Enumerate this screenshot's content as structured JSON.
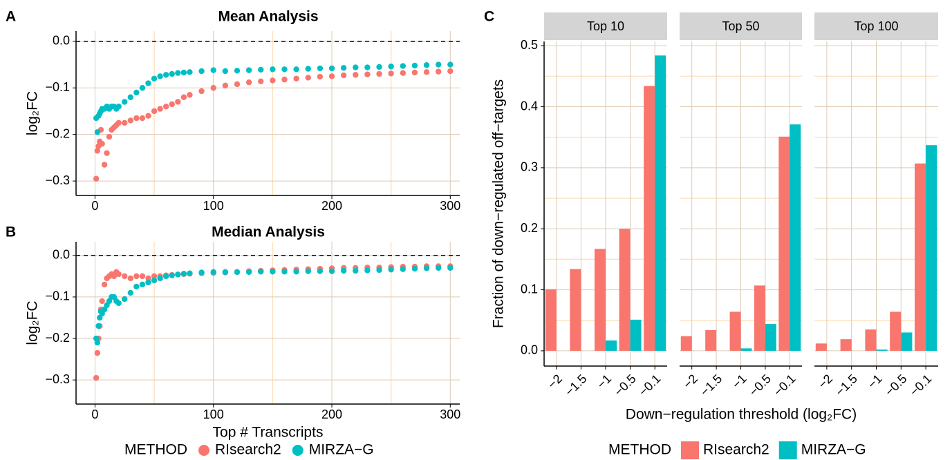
{
  "chart_data": [
    {
      "type": "scatter",
      "label": "A",
      "title": "Mean Analysis",
      "ylabel": "log₂FC",
      "xlim": [
        -16,
        308
      ],
      "xticks": [
        0,
        100,
        200,
        300
      ],
      "minor_xticks": [
        50,
        150,
        250
      ],
      "ylim": [
        -0.331,
        0.022
      ],
      "yticks": [
        {
          "value": 0,
          "label": "0.0"
        },
        {
          "value": -0.1,
          "label": "−0.1"
        },
        {
          "value": -0.2,
          "label": "−0.2"
        },
        {
          "value": -0.3,
          "label": "−0.3"
        }
      ],
      "hline": 0,
      "grid": true,
      "x": [
        1,
        2,
        3,
        4,
        5,
        6,
        8,
        10,
        12,
        14,
        16,
        18,
        20,
        25,
        30,
        35,
        40,
        45,
        50,
        55,
        60,
        65,
        70,
        75,
        80,
        90,
        100,
        110,
        120,
        130,
        140,
        150,
        160,
        170,
        180,
        190,
        200,
        210,
        220,
        230,
        240,
        250,
        260,
        270,
        280,
        290,
        300
      ],
      "series": [
        {
          "color": "#F8766D",
          "values": [
            -0.295,
            -0.235,
            -0.225,
            -0.215,
            -0.19,
            -0.22,
            -0.265,
            -0.24,
            -0.205,
            -0.19,
            -0.185,
            -0.18,
            -0.175,
            -0.175,
            -0.17,
            -0.165,
            -0.165,
            -0.16,
            -0.15,
            -0.145,
            -0.14,
            -0.135,
            -0.13,
            -0.12,
            -0.115,
            -0.107,
            -0.1,
            -0.095,
            -0.092,
            -0.088,
            -0.086,
            -0.084,
            -0.082,
            -0.08,
            -0.078,
            -0.076,
            -0.075,
            -0.073,
            -0.072,
            -0.071,
            -0.07,
            -0.069,
            -0.068,
            -0.067,
            -0.066,
            -0.065,
            -0.064
          ]
        },
        {
          "color": "#00BFC4",
          "values": [
            -0.165,
            -0.195,
            -0.16,
            -0.155,
            -0.15,
            -0.145,
            -0.145,
            -0.14,
            -0.145,
            -0.14,
            -0.14,
            -0.145,
            -0.14,
            -0.13,
            -0.12,
            -0.11,
            -0.1,
            -0.09,
            -0.08,
            -0.075,
            -0.072,
            -0.07,
            -0.068,
            -0.067,
            -0.066,
            -0.064,
            -0.062,
            -0.064,
            -0.063,
            -0.062,
            -0.061,
            -0.06,
            -0.06,
            -0.06,
            -0.059,
            -0.058,
            -0.058,
            -0.057,
            -0.056,
            -0.056,
            -0.055,
            -0.054,
            -0.053,
            -0.052,
            -0.051,
            -0.05,
            -0.05
          ]
        }
      ]
    },
    {
      "type": "scatter",
      "label": "B",
      "title": "Median Analysis",
      "ylabel": "log₂FC",
      "xlabel": "Top # Transcripts",
      "xlim": [
        -16,
        308
      ],
      "xticks": [
        0,
        100,
        200,
        300
      ],
      "minor_xticks": [
        50,
        150,
        250
      ],
      "ylim": [
        -0.358,
        0.033
      ],
      "yticks": [
        {
          "value": 0,
          "label": "0.0"
        },
        {
          "value": -0.1,
          "label": "−0.1"
        },
        {
          "value": -0.2,
          "label": "−0.2"
        },
        {
          "value": -0.3,
          "label": "−0.3"
        }
      ],
      "hline": 0,
      "grid": true,
      "legend_title": "METHOD",
      "x": [
        1,
        2,
        3,
        4,
        5,
        6,
        8,
        10,
        12,
        14,
        16,
        18,
        20,
        25,
        30,
        35,
        40,
        45,
        50,
        55,
        60,
        65,
        70,
        75,
        80,
        90,
        100,
        110,
        120,
        130,
        140,
        150,
        160,
        170,
        180,
        190,
        200,
        210,
        220,
        230,
        240,
        250,
        260,
        270,
        280,
        290,
        300
      ],
      "series": [
        {
          "name": "RIsearch2",
          "color": "#F8766D",
          "values": [
            -0.295,
            -0.235,
            -0.2,
            -0.17,
            -0.13,
            -0.11,
            -0.07,
            -0.055,
            -0.05,
            -0.045,
            -0.05,
            -0.04,
            -0.045,
            -0.05,
            -0.055,
            -0.05,
            -0.05,
            -0.055,
            -0.05,
            -0.05,
            -0.048,
            -0.047,
            -0.046,
            -0.045,
            -0.044,
            -0.043,
            -0.042,
            -0.041,
            -0.04,
            -0.038,
            -0.037,
            -0.036,
            -0.035,
            -0.034,
            -0.033,
            -0.032,
            -0.031,
            -0.03,
            -0.03,
            -0.029,
            -0.029,
            -0.028,
            -0.027,
            -0.027,
            -0.026,
            -0.026,
            -0.026
          ]
        },
        {
          "name": "MIRZA−G",
          "color": "#00BFC4",
          "values": [
            -0.2,
            -0.21,
            -0.17,
            -0.15,
            -0.135,
            -0.14,
            -0.13,
            -0.12,
            -0.11,
            -0.1,
            -0.1,
            -0.11,
            -0.115,
            -0.105,
            -0.09,
            -0.075,
            -0.07,
            -0.065,
            -0.06,
            -0.055,
            -0.05,
            -0.048,
            -0.046,
            -0.044,
            -0.043,
            -0.041,
            -0.04,
            -0.04,
            -0.04,
            -0.04,
            -0.039,
            -0.039,
            -0.039,
            -0.039,
            -0.038,
            -0.038,
            -0.038,
            -0.037,
            -0.037,
            -0.036,
            -0.035,
            -0.034,
            -0.033,
            -0.032,
            -0.031,
            -0.03,
            -0.03
          ]
        }
      ]
    },
    {
      "type": "bar",
      "label": "C",
      "ylabel": "Fraction of down−regulated off−targets",
      "xlabel": "Down−regulation threshold (log₂FC)",
      "facets": [
        "Top 10",
        "Top 50",
        "Top 100"
      ],
      "categories": [
        "−2",
        "−1.5",
        "−1",
        "−0.5",
        "−0.1"
      ],
      "ylim": [
        -0.025,
        0.507
      ],
      "yticks": [
        {
          "value": 0,
          "label": "0.0"
        },
        0.1,
        0.2,
        0.3,
        0.4,
        0.5
      ],
      "minor_yticks": [
        0.05,
        0.15,
        0.25,
        0.35,
        0.45
      ],
      "grid": true,
      "legend_title": "METHOD",
      "series": [
        {
          "name": "RIsearch2",
          "color": "#F8766D",
          "values": [
            [
              0.101,
              0.134,
              0.167,
              0.2,
              0.434
            ],
            [
              0.024,
              0.034,
              0.064,
              0.107,
              0.351
            ],
            [
              0.012,
              0.019,
              0.035,
              0.064,
              0.307
            ]
          ]
        },
        {
          "name": "MIRZA−G",
          "color": "#00BFC4",
          "values": [
            [
              0,
              0,
              0.017,
              0.051,
              0.484
            ],
            [
              0,
              0,
              0.004,
              0.044,
              0.371
            ],
            [
              0,
              0,
              0.002,
              0.03,
              0.337
            ]
          ]
        }
      ]
    }
  ]
}
